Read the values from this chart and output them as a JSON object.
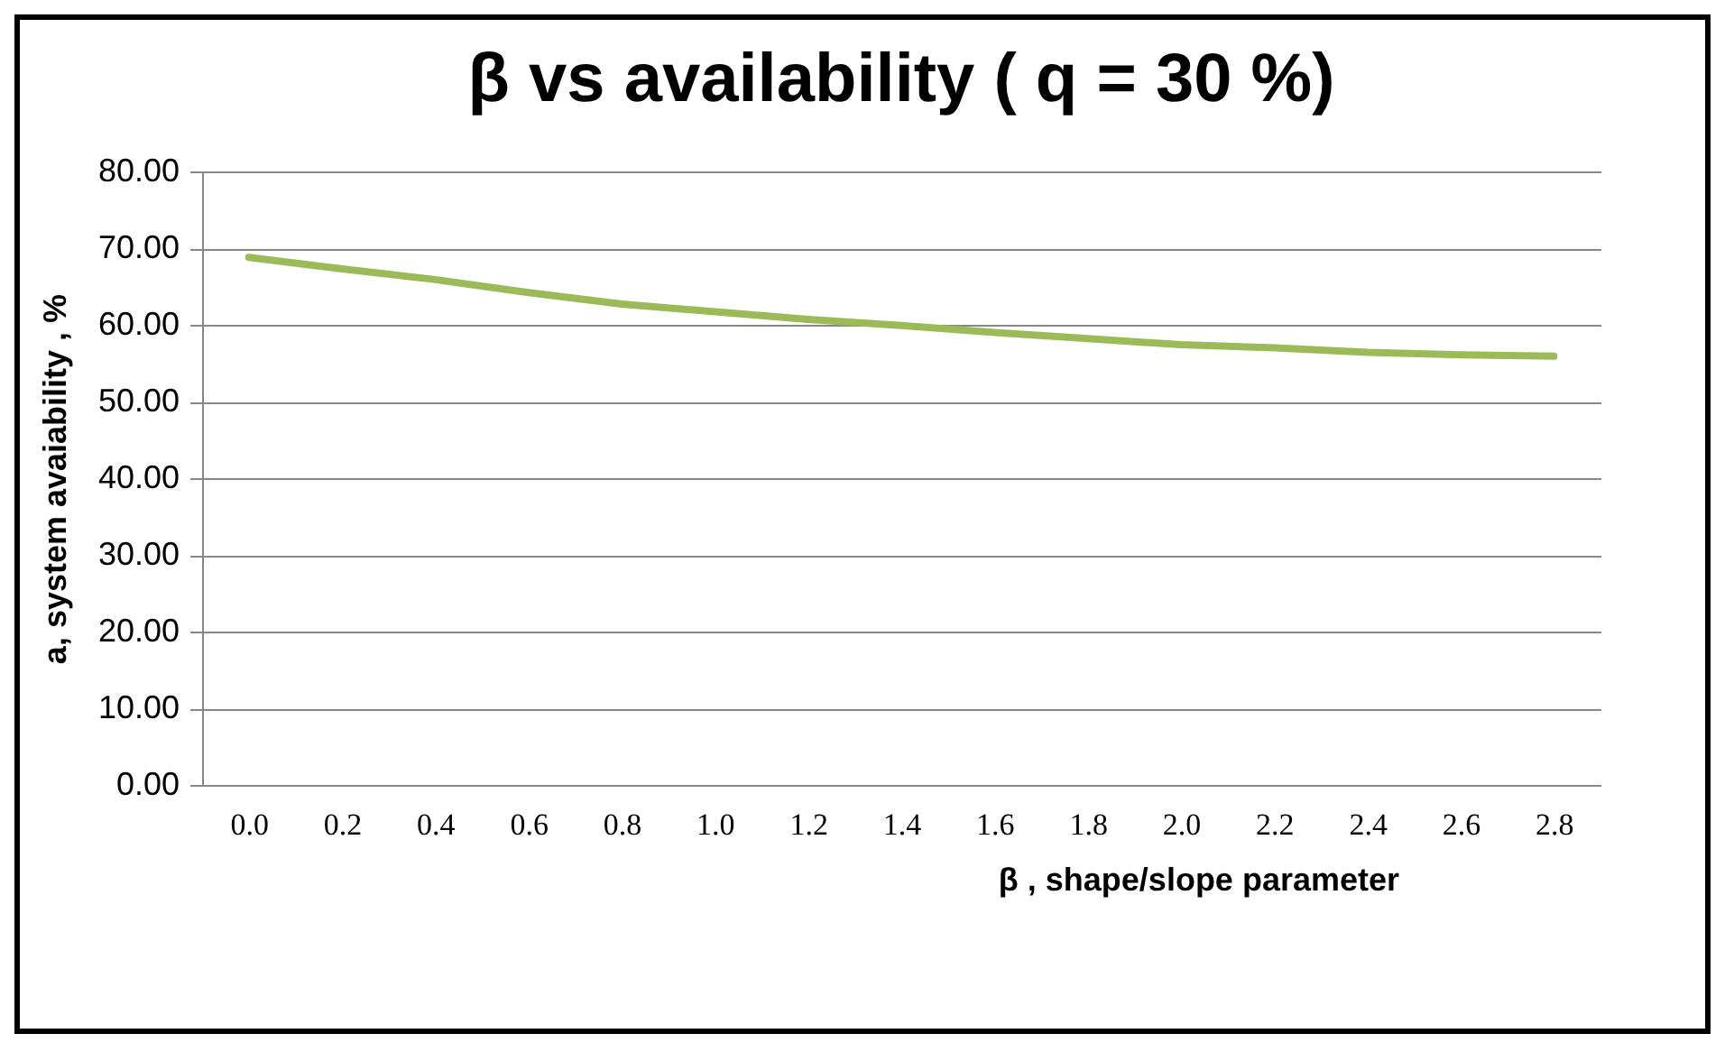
{
  "chart_data": {
    "type": "line",
    "title": "β vs availability ( q = 30 %)",
    "xlabel": "β , shape/slope parameter",
    "ylabel": "a, system avaiability , %",
    "categories": [
      "0.0",
      "0.2",
      "0.4",
      "0.6",
      "0.8",
      "1.0",
      "1.2",
      "1.4",
      "1.6",
      "1.8",
      "2.0",
      "2.2",
      "2.4",
      "2.6",
      "2.8"
    ],
    "series": [
      {
        "color": "#9bbb59",
        "values": [
          68.8,
          67.3,
          65.9,
          64.2,
          62.7,
          61.7,
          60.7,
          59.9,
          59.0,
          58.2,
          57.4,
          57.0,
          56.4,
          56.1,
          55.9
        ]
      }
    ],
    "ylim": [
      0,
      80
    ],
    "yticks": [
      {
        "value": 0,
        "label": "0.00"
      },
      {
        "value": 10,
        "label": "10.00"
      },
      {
        "value": 20,
        "label": "20.00"
      },
      {
        "value": 30,
        "label": "30.00"
      },
      {
        "value": 40,
        "label": "40.00"
      },
      {
        "value": 50,
        "label": "50.00"
      },
      {
        "value": 60,
        "label": "60.00"
      },
      {
        "value": 70,
        "label": "70.00"
      },
      {
        "value": 80,
        "label": "80.00"
      }
    ],
    "grid": "y",
    "legend": false,
    "marker": "none"
  }
}
